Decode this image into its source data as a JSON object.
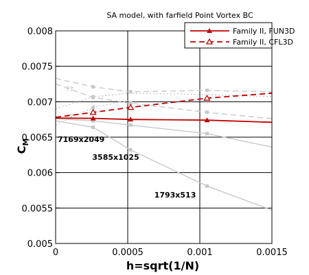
{
  "chart_data": {
    "type": "line",
    "title": "SA model, with farfield Point Vortex BC",
    "xlabel": "h=sqrt(1/N)",
    "ylabel": "C",
    "ylabel_sub": "M",
    "xlim": [
      0,
      0.0015
    ],
    "ylim": [
      0.005,
      0.008
    ],
    "x_ticks": [
      0,
      0.0005,
      0.001,
      0.0015
    ],
    "x_tick_labels": [
      "0",
      "0.0005",
      "0.001",
      "0.0015"
    ],
    "y_ticks": [
      0.005,
      0.0055,
      0.006,
      0.0065,
      0.007,
      0.0075,
      0.008
    ],
    "y_tick_labels": [
      "0.005",
      "0.0055",
      "0.006",
      "0.0065",
      "0.007",
      "0.0075",
      "0.008"
    ],
    "grid": true,
    "legend_position": "top-right",
    "series": [
      {
        "name": "Family II, FUN3D",
        "color": "#c00000",
        "style": "solid",
        "marker": "filled-triangle",
        "x": [
          0,
          0.00026,
          0.00052,
          0.00105,
          0.0015
        ],
        "y": [
          0.00677,
          0.006765,
          0.00675,
          0.00674,
          0.00671
        ],
        "markers_at": [
          0.00026,
          0.00052,
          0.00105
        ]
      },
      {
        "name": "Family II, CFL3D",
        "color": "#c00000",
        "style": "dashed",
        "marker": "open-triangle",
        "x": [
          0,
          0.00026,
          0.00052,
          0.00105,
          0.0015
        ],
        "y": [
          0.00678,
          0.00685,
          0.00692,
          0.00705,
          0.00712
        ],
        "markers_at": [
          0.00026,
          0.00052,
          0.00105
        ]
      }
    ],
    "background_series": [
      {
        "color": "#c8c8c8",
        "style": "solid",
        "marker": "square",
        "x": [
          0,
          0.00026,
          0.00052,
          0.00105,
          0.0015
        ],
        "y": [
          0.00673,
          0.00664,
          0.00632,
          0.00581,
          0.00547
        ],
        "markers_at": [
          0.00026,
          0.00052,
          0.00105
        ]
      },
      {
        "color": "#c8c8c8",
        "style": "solid",
        "marker": "square",
        "x": [
          0,
          0.00026,
          0.00052,
          0.00105,
          0.0015
        ],
        "y": [
          0.00676,
          0.00673,
          0.00667,
          0.00655,
          0.00636
        ],
        "markers_at": [
          0.00026,
          0.00052,
          0.00105
        ]
      },
      {
        "color": "#c8c8c8",
        "style": "dashed",
        "marker": "square",
        "x": [
          0,
          0.00026,
          0.00052,
          0.00105,
          0.0015
        ],
        "y": [
          0.00733,
          0.00721,
          0.00714,
          0.00716,
          0.00714
        ],
        "markers_at": [
          0.00026,
          0.00052,
          0.00105
        ]
      },
      {
        "color": "#c8c8c8",
        "style": "dashed",
        "marker": "square",
        "x": [
          0,
          0.00026,
          0.00052,
          0.00105,
          0.0015
        ],
        "y": [
          0.00725,
          0.00706,
          0.00698,
          0.00685,
          0.00676
        ],
        "markers_at": [
          0.00026,
          0.00052,
          0.00105
        ]
      },
      {
        "color": "#c8c8c8",
        "style": "dotted",
        "marker": "square",
        "x": [
          0,
          0.00026,
          0.00052,
          0.00105,
          0.0015
        ],
        "y": [
          0.0069,
          0.00707,
          0.00712,
          0.0071,
          0.00707
        ],
        "markers_at": [
          0.00026
        ]
      },
      {
        "color": "#c8c8c8",
        "style": "dotted",
        "marker": "square",
        "x": [
          0,
          0.00026,
          0.00052
        ],
        "y": [
          0.00667,
          0.00692,
          0.00702
        ],
        "markers_at": [
          0.00026
        ]
      }
    ],
    "annotations": [
      {
        "text": "7169x2049",
        "x": 0.0,
        "y": 0.00643
      },
      {
        "text": "3585x1025",
        "x": 0.00024,
        "y": 0.00618
      },
      {
        "text": "1793x513",
        "x": 0.00067,
        "y": 0.00565
      }
    ],
    "background_marks": [
      {
        "text": "??",
        "x": 7e-05,
        "y": 0.00715
      },
      {
        "text": "??",
        "x": 7e-05,
        "y": 0.00676
      }
    ]
  }
}
